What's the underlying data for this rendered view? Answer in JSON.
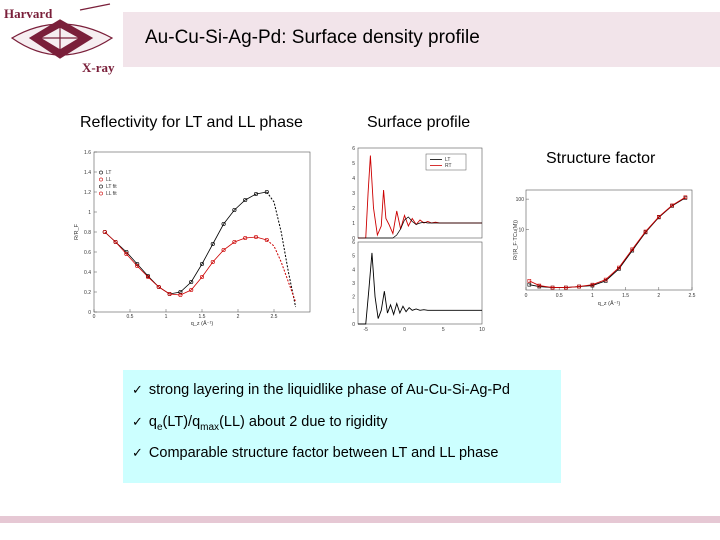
{
  "logo": {
    "line1": "Harvard",
    "line2": "X-ray",
    "icon": "harvard-xray-shield-icon",
    "color": "#7a1f3a"
  },
  "title": "Au-Cu-Si-Ag-Pd: Surface density profile",
  "labels": {
    "reflectivity": "Reflectivity for LT and LL phase",
    "surface": "Surface profile",
    "structure": "Structure factor"
  },
  "bullets": {
    "b1": "strong layering in the liquidlike phase of Au-Cu-Si-Ag-Pd",
    "b2_a": "q",
    "b2_sub1": "e",
    "b2_b": "(LT)/q",
    "b2_sub2": "max",
    "b2_c": "(LL) about 2 due to rigidity",
    "b3": "Comparable structure factor between LT and LL phase"
  },
  "chart_data": [
    {
      "type": "scatter",
      "xlabel": "q_z (Å⁻¹)",
      "ylabel": "R/R_F",
      "xlim": [
        0,
        3
      ],
      "ylim": [
        0,
        1.6
      ],
      "x_ticks": [
        "0",
        "0.5",
        "1",
        "1.5",
        "2",
        "2.5"
      ],
      "y_ticks": [
        "0",
        "0.2",
        "0.4",
        "0.6",
        "0.8",
        "1",
        "1.2",
        "1.4",
        "1.6"
      ],
      "legend": [
        "LT",
        "LL",
        "LT fit",
        "LL fit"
      ],
      "series": [
        {
          "name": "LT",
          "color": "#000000",
          "x": [
            0.15,
            0.3,
            0.45,
            0.6,
            0.75,
            0.9,
            1.05,
            1.2,
            1.35,
            1.5,
            1.65,
            1.8,
            1.95,
            2.1,
            2.25,
            2.4
          ],
          "y": [
            0.8,
            0.7,
            0.6,
            0.48,
            0.36,
            0.25,
            0.18,
            0.2,
            0.3,
            0.48,
            0.68,
            0.88,
            1.02,
            1.12,
            1.18,
            1.2
          ]
        },
        {
          "name": "LL",
          "color": "#cc0000",
          "x": [
            0.15,
            0.3,
            0.45,
            0.6,
            0.75,
            0.9,
            1.05,
            1.2,
            1.35,
            1.5,
            1.65,
            1.8,
            1.95,
            2.1,
            2.25,
            2.4
          ],
          "y": [
            0.8,
            0.7,
            0.58,
            0.46,
            0.35,
            0.25,
            0.18,
            0.17,
            0.22,
            0.35,
            0.5,
            0.62,
            0.7,
            0.74,
            0.75,
            0.72
          ]
        },
        {
          "name": "LT fit",
          "color": "#000000",
          "dashed": true,
          "x": [
            2.4,
            2.5,
            2.6,
            2.7,
            2.8
          ],
          "y": [
            1.2,
            1.1,
            0.8,
            0.4,
            0.05
          ]
        },
        {
          "name": "LL fit",
          "color": "#cc0000",
          "dashed": true,
          "x": [
            2.4,
            2.5,
            2.6,
            2.7,
            2.8
          ],
          "y": [
            0.72,
            0.66,
            0.5,
            0.3,
            0.1
          ]
        }
      ]
    },
    {
      "type": "line",
      "x_ticks": [
        "-5",
        "0",
        "5",
        "10"
      ],
      "xlim": [
        -6,
        10
      ],
      "top": {
        "ylim": [
          0,
          6
        ],
        "y_ticks": [
          "0",
          "1",
          "2",
          "3",
          "4",
          "5",
          "6"
        ],
        "legend": [
          "LT",
          "RT"
        ],
        "x": [
          -6,
          -5.5,
          -5,
          -4.7,
          -4.4,
          -4,
          -3.5,
          -3,
          -2.7,
          -2.4,
          -2,
          -1.5,
          -1,
          -0.5,
          0,
          0.5,
          1,
          1.5,
          2,
          2.5,
          3,
          3.5,
          4,
          4.5,
          5,
          5.5,
          6,
          7,
          8,
          9,
          10
        ],
        "y": [
          0,
          0,
          0,
          3,
          5.5,
          2,
          0.2,
          0.8,
          3.2,
          1.3,
          0.9,
          0.3,
          1.8,
          0.6,
          1.5,
          0.8,
          1.3,
          0.9,
          1.2,
          1,
          1.1,
          1,
          1.05,
          1,
          1,
          1,
          1,
          1,
          1,
          1,
          1
        ],
        "y_black": [
          0,
          0,
          0,
          0,
          0,
          0,
          0,
          0,
          0,
          0,
          0,
          0,
          0.2,
          0.6,
          1.2,
          1.4,
          1.1,
          0.9,
          1,
          1.05,
          1,
          1,
          1,
          1,
          1,
          1,
          1,
          1,
          1,
          1,
          1
        ]
      },
      "bottom": {
        "ylim": [
          0,
          6
        ],
        "y_ticks": [
          "0",
          "1",
          "2",
          "3",
          "4",
          "5",
          "6"
        ],
        "x": [
          -6,
          -5.5,
          -5,
          -4.6,
          -4.2,
          -3.8,
          -3.4,
          -3,
          -2.6,
          -2.2,
          -1.8,
          -1.4,
          -1,
          -0.6,
          -0.2,
          0.2,
          0.6,
          1,
          1.5,
          2,
          2.5,
          3,
          3.5,
          4,
          5,
          6,
          7,
          8,
          9,
          10
        ],
        "y": [
          0,
          0,
          0,
          2.5,
          5.2,
          2,
          0.4,
          1,
          2.4,
          0.8,
          1.4,
          0.7,
          1.5,
          0.8,
          1.3,
          0.9,
          1.2,
          1,
          1.1,
          1,
          1.05,
          1,
          1,
          1,
          1,
          1,
          1,
          1,
          1,
          1
        ]
      }
    },
    {
      "type": "scatter",
      "xlabel": "q_z (Å⁻¹)",
      "ylabel": "R/(R_F·TCu(M))",
      "yscale": "log",
      "xlim": [
        0,
        2.5
      ],
      "x_ticks": [
        "0",
        "0.5",
        "1",
        "1.5",
        "2",
        "2.5"
      ],
      "y_ticks": [
        "10",
        "100"
      ],
      "series": [
        {
          "name": "LT",
          "color": "#000000",
          "x": [
            0.05,
            0.2,
            0.4,
            0.6,
            0.8,
            1.0,
            1.2,
            1.4,
            1.6,
            1.8,
            2.0,
            2.2,
            2.4
          ],
          "y": [
            0.15,
            0.13,
            0.12,
            0.12,
            0.13,
            0.14,
            0.2,
            0.5,
            2,
            8,
            25,
            60,
            110
          ]
        },
        {
          "name": "LL",
          "color": "#cc0000",
          "x": [
            0.05,
            0.2,
            0.4,
            0.6,
            0.8,
            1.0,
            1.2,
            1.4,
            1.6,
            1.8,
            2.0,
            2.2,
            2.4
          ],
          "y": [
            0.2,
            0.14,
            0.12,
            0.12,
            0.13,
            0.15,
            0.22,
            0.55,
            2.2,
            8.5,
            26,
            62,
            115
          ]
        }
      ]
    }
  ]
}
